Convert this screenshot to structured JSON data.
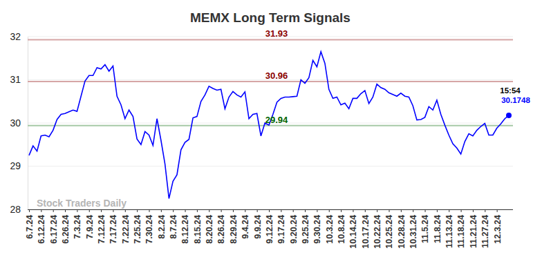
{
  "chart_data": {
    "type": "line",
    "title": "MEMX Long Term Signals",
    "color": "#0000ff",
    "grid": true,
    "categories": [
      "6.7.24",
      null,
      null,
      "6.12.24",
      null,
      null,
      "6.17.24",
      null,
      null,
      "6.26.24",
      null,
      null,
      "7.3.24",
      null,
      null,
      "7.9.24",
      null,
      null,
      "7.12.24",
      null,
      null,
      "7.17.24",
      null,
      null,
      "7.22.24",
      null,
      null,
      "7.25.24",
      null,
      null,
      "7.30.24",
      null,
      null,
      "8.2.24",
      null,
      null,
      "8.7.24",
      null,
      null,
      "8.12.24",
      null,
      null,
      "8.15.24",
      null,
      null,
      "8.20.24",
      null,
      null,
      "8.26.24",
      null,
      null,
      "8.29.24",
      null,
      null,
      "9.4.24",
      null,
      null,
      "9.9.24",
      null,
      null,
      "9.12.24",
      null,
      null,
      "9.17.24",
      null,
      null,
      "9.20.24",
      null,
      null,
      "9.25.24",
      null,
      null,
      "9.30.24",
      null,
      null,
      "10.3.24",
      null,
      null,
      "10.8.24",
      null,
      null,
      "10.14.24",
      null,
      null,
      "10.17.24",
      null,
      null,
      "10.22.24",
      null,
      null,
      "10.25.24",
      null,
      null,
      "10.28.24",
      null,
      null,
      "10.31.24",
      null,
      null,
      "11.5.24",
      null,
      null,
      "11.8.24",
      null,
      null,
      "11.13.24",
      null,
      null,
      "11.18.24",
      null,
      null,
      "11.21.24",
      null,
      null,
      "11.27.24",
      null,
      null,
      "12.3.24",
      null,
      null,
      null
    ],
    "values": [
      29.25,
      29.47,
      29.35,
      29.7,
      29.72,
      29.68,
      29.83,
      30.08,
      30.2,
      30.22,
      30.26,
      30.3,
      30.27,
      30.62,
      30.97,
      31.1,
      31.1,
      31.28,
      31.25,
      31.35,
      31.2,
      31.32,
      30.62,
      30.42,
      30.1,
      30.3,
      30.15,
      29.63,
      29.5,
      29.8,
      29.72,
      29.48,
      30.1,
      29.6,
      29.05,
      28.25,
      28.65,
      28.8,
      29.38,
      29.55,
      29.62,
      30.12,
      30.15,
      30.5,
      30.65,
      30.85,
      30.8,
      30.76,
      30.78,
      30.33,
      30.6,
      30.73,
      30.65,
      30.6,
      30.72,
      30.1,
      30.2,
      30.22,
      29.7,
      30.0,
      29.95,
      30.2,
      30.48,
      30.57,
      30.6,
      30.6,
      30.61,
      30.62,
      31.0,
      30.92,
      31.05,
      31.45,
      31.3,
      31.65,
      31.38,
      30.78,
      30.57,
      30.6,
      30.42,
      30.46,
      30.33,
      30.57,
      30.57,
      30.68,
      30.75,
      30.45,
      30.6,
      30.9,
      30.82,
      30.78,
      30.7,
      30.66,
      30.62,
      30.69,
      30.62,
      30.6,
      30.4,
      30.07,
      30.08,
      30.13,
      30.38,
      30.3,
      30.53,
      30.2,
      29.95,
      29.72,
      29.52,
      29.42,
      29.28,
      29.57,
      29.75,
      29.7,
      29.83,
      29.92,
      29.99,
      29.72,
      29.72,
      29.88,
      29.98,
      30.1,
      30.1748
    ],
    "ylim": [
      28,
      32
    ],
    "yticks": [
      28,
      29,
      30,
      31,
      32
    ],
    "reference_lines": [
      {
        "value": 31.93,
        "label": "31.93",
        "color": "#8b0000"
      },
      {
        "value": 30.96,
        "label": "30.96",
        "color": "#8b0000"
      },
      {
        "value": 29.94,
        "label": "29.94",
        "color": "#006400"
      }
    ],
    "annotations": [
      {
        "label": "15:54"
      },
      {
        "label": "30.1748",
        "value": 30.1748,
        "color": "#0000ff"
      }
    ],
    "watermark": "Stock Traders Daily"
  }
}
